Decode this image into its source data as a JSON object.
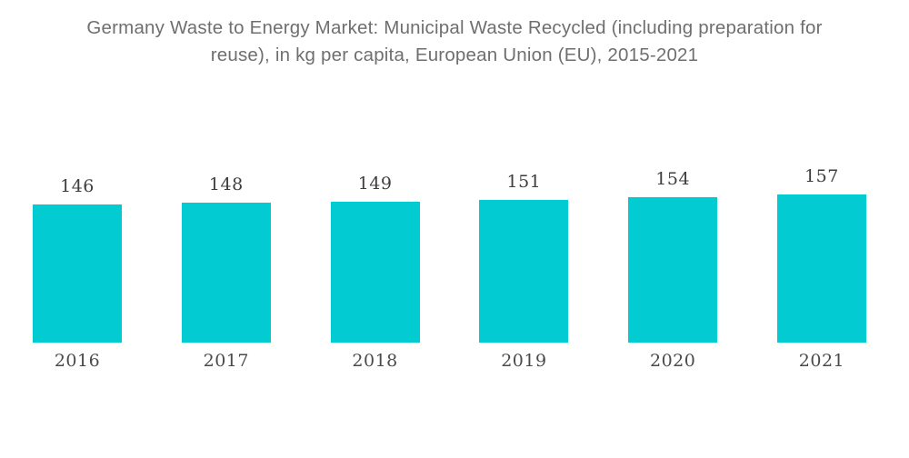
{
  "header": {
    "title_lines": [
      "Germany Waste to Energy Market: Municipal Waste Recycled (including preparation for",
      "reuse), in kg per capita, European Union (EU), 2015-2021"
    ]
  },
  "chart_data": {
    "type": "bar",
    "title": "Germany Waste to Energy Market: Municipal Waste Recycled (including preparation for reuse), in kg per capita, European Union (EU), 2015-2021",
    "categories": [
      "2016",
      "2017",
      "2018",
      "2019",
      "2020",
      "2021"
    ],
    "values": [
      146,
      148,
      149,
      151,
      154,
      157
    ],
    "ylabel": "",
    "xlabel": "",
    "unit": "kg per capita",
    "ylim": [
      0,
      157
    ],
    "grid": false,
    "legend": "none",
    "value_labels_shown": true,
    "colors": {
      "bar": "#02CBD2",
      "value_label": "#3e3e3e",
      "category_label": "#4a4a4a",
      "title": "#6f6f6f",
      "background": "#ffffff"
    }
  }
}
